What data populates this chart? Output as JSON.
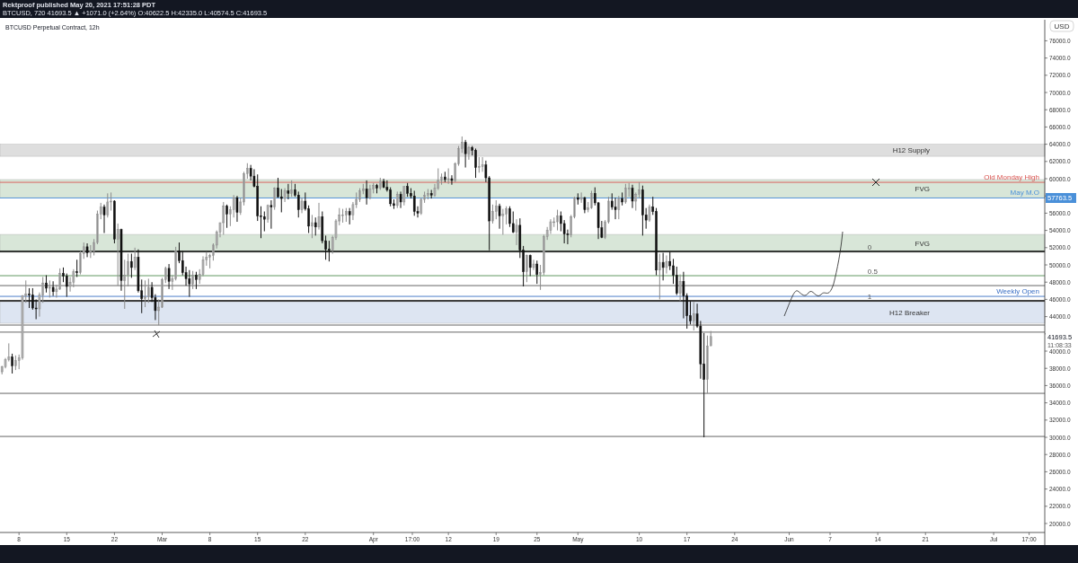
{
  "chart_data": {
    "type": "candlestick",
    "title": "BTCUSD Perpetual Contract, 12h",
    "subtitle": "BTCUSD, 720 41693.5 ▲ +1071.0 (+2.64%) O:40622.5 H:42335.0 L:40574.5 C:41693.5",
    "ylabel": "USD",
    "annotations": [
      "Rektproof published May 20, 2021 17:51:28 PDT",
      "11:08:33",
      {
        "text": "57763.5",
        "x": "2021-07-08T12:00",
        "y": 57763.5
      },
      {
        "text": "41693.5",
        "x": "2021-07-08T12:00",
        "y": 41693.5
      },
      {
        "text": "0",
        "x": "2021-06-12T12:00",
        "y": 51560
      },
      {
        "text": "0.5",
        "x": "2021-06-12T12:00",
        "y": 48750
      },
      {
        "text": "1",
        "x": "2021-06-12T12:00",
        "y": 45830
      }
    ],
    "xlim": [
      "2021-02-05T05:00",
      "2021-07-08T12:00"
    ],
    "xticks": [
      {
        "value": "2021-02-08",
        "label": "8"
      },
      {
        "value": "2021-02-15",
        "label": "15"
      },
      {
        "value": "2021-02-22",
        "label": "22"
      },
      {
        "value": "2021-03-01",
        "label": "Mar"
      },
      {
        "value": "2021-03-08",
        "label": "8"
      },
      {
        "value": "2021-03-15",
        "label": "15"
      },
      {
        "value": "2021-03-22",
        "label": "22"
      },
      {
        "value": "2021-04-01",
        "label": "Apr"
      },
      {
        "value": "2021-04-06T17:00",
        "label": "17:00"
      },
      {
        "value": "2021-04-12",
        "label": "12"
      },
      {
        "value": "2021-04-19",
        "label": "19"
      },
      {
        "value": "2021-04-25",
        "label": "25"
      },
      {
        "value": "2021-05-01",
        "label": "May"
      },
      {
        "value": "2021-05-10",
        "label": "10"
      },
      {
        "value": "2021-05-17",
        "label": "17"
      },
      {
        "value": "2021-05-24",
        "label": "24"
      },
      {
        "value": "2021-06-01",
        "label": "Jun"
      },
      {
        "value": "2021-06-07",
        "label": "7"
      },
      {
        "value": "2021-06-14",
        "label": "14"
      },
      {
        "value": "2021-06-21",
        "label": "21"
      },
      {
        "value": "2021-07-01",
        "label": "Jul"
      },
      {
        "value": "2021-07-06T05:00",
        "label": "17:00"
      }
    ],
    "ylim": [
      18960,
      78440
    ],
    "yticks": [
      {
        "value": 20000,
        "label": "20000.0"
      },
      {
        "value": 22000,
        "label": "22000.0"
      },
      {
        "value": 24000,
        "label": "24000.0"
      },
      {
        "value": 26000,
        "label": "26000.0"
      },
      {
        "value": 28000,
        "label": "28000.0"
      },
      {
        "value": 30000,
        "label": "30000.0"
      },
      {
        "value": 32000,
        "label": "32000.0"
      },
      {
        "value": 34000,
        "label": "34000.0"
      },
      {
        "value": 36000,
        "label": "36000.0"
      },
      {
        "value": 38000,
        "label": "38000.0"
      },
      {
        "value": 40000,
        "label": "40000.0"
      },
      {
        "value": 42000,
        "label": null
      },
      {
        "value": 44000,
        "label": "44000.0"
      },
      {
        "value": 46000,
        "label": "46000.0"
      },
      {
        "value": 48000,
        "label": "48000.0"
      },
      {
        "value": 50000,
        "label": "50000.0"
      },
      {
        "value": 52000,
        "label": "52000.0"
      },
      {
        "value": 54000,
        "label": "54000.0"
      },
      {
        "value": 56000,
        "label": "56000.0"
      },
      {
        "value": 58000,
        "label": null
      },
      {
        "value": 60000,
        "label": "60000.0"
      },
      {
        "value": 62000,
        "label": "62000.0"
      },
      {
        "value": 64000,
        "label": "64000.0"
      },
      {
        "value": 66000,
        "label": "66000.0"
      },
      {
        "value": 68000,
        "label": "68000.0"
      },
      {
        "value": 70000,
        "label": "70000.0"
      },
      {
        "value": 72000,
        "label": "72000.0"
      },
      {
        "value": 74000,
        "label": "74000.0"
      },
      {
        "value": 76000,
        "label": "76000.0"
      }
    ],
    "bands": [
      {
        "axis": "y",
        "from": 62600,
        "to": 64000,
        "label": "H12 Supply",
        "color": "#c4c4c4"
      },
      {
        "axis": "y",
        "from": 57800,
        "to": 59900,
        "label": "FVG",
        "color": "#b9d3b9"
      },
      {
        "axis": "y",
        "from": 51460,
        "to": 53540,
        "label": "FVG",
        "color": "#b9d3b9"
      },
      {
        "axis": "y",
        "from": 43230,
        "to": 45730,
        "label": "H12 Breaker",
        "color": "#c3d1e8"
      }
    ],
    "ref_lines": [
      {
        "axis": "y",
        "value": 59580,
        "label": "Old Monday High",
        "color": "#d9534f"
      },
      {
        "axis": "y",
        "value": 57763.5,
        "label": "May M.O",
        "color": "#4a90d9"
      },
      {
        "axis": "y",
        "value": 51560,
        "label": null,
        "color": "#000000"
      },
      {
        "axis": "y",
        "value": 48750,
        "label": null,
        "color": "#4f8a4f"
      },
      {
        "axis": "y",
        "value": 46350,
        "label": "Weekly Open",
        "color": "#3a6fc4"
      },
      {
        "axis": "y",
        "value": 45830,
        "label": null,
        "color": "#000000"
      },
      {
        "axis": "y",
        "value": 47600,
        "label": null,
        "color": "#555555"
      },
      {
        "axis": "y",
        "value": 43020,
        "label": null,
        "color": "#555555"
      },
      {
        "axis": "y",
        "value": 42200,
        "label": null,
        "color": "#555555"
      },
      {
        "axis": "y",
        "value": 35100,
        "label": null,
        "color": "#555555"
      },
      {
        "axis": "y",
        "value": 30100,
        "label": null,
        "color": "#555555"
      }
    ],
    "x": [
      "2021-02-05T12:00",
      "2021-02-06T00:00",
      "2021-02-06T12:00",
      "2021-02-07T00:00",
      "2021-02-07T12:00",
      "2021-02-08T00:00",
      "2021-02-08T12:00",
      "2021-02-09T00:00",
      "2021-02-09T12:00",
      "2021-02-10T00:00",
      "2021-02-10T12:00",
      "2021-02-11T00:00",
      "2021-02-11T12:00",
      "2021-02-12T00:00",
      "2021-02-12T12:00",
      "2021-02-13T00:00",
      "2021-02-13T12:00",
      "2021-02-14T00:00",
      "2021-02-14T12:00",
      "2021-02-15T00:00",
      "2021-02-15T12:00",
      "2021-02-16T00:00",
      "2021-02-16T12:00",
      "2021-02-17T00:00",
      "2021-02-17T12:00",
      "2021-02-18T00:00",
      "2021-02-18T12:00",
      "2021-02-19T00:00",
      "2021-02-19T12:00",
      "2021-02-20T00:00",
      "2021-02-20T12:00",
      "2021-02-21T00:00",
      "2021-02-21T12:00",
      "2021-02-22T00:00",
      "2021-02-22T12:00",
      "2021-02-23T00:00",
      "2021-02-23T12:00",
      "2021-02-24T00:00",
      "2021-02-24T12:00",
      "2021-02-25T00:00",
      "2021-02-25T12:00",
      "2021-02-26T00:00",
      "2021-02-26T12:00",
      "2021-02-27T00:00",
      "2021-02-27T12:00",
      "2021-02-28T00:00",
      "2021-02-28T12:00",
      "2021-03-01T00:00",
      "2021-03-01T12:00",
      "2021-03-02T00:00",
      "2021-03-02T12:00",
      "2021-03-03T00:00",
      "2021-03-03T12:00",
      "2021-03-04T00:00",
      "2021-03-04T12:00",
      "2021-03-05T00:00",
      "2021-03-05T12:00",
      "2021-03-06T00:00",
      "2021-03-06T12:00",
      "2021-03-07T00:00",
      "2021-03-07T12:00",
      "2021-03-08T00:00",
      "2021-03-08T12:00",
      "2021-03-09T00:00",
      "2021-03-09T12:00",
      "2021-03-10T00:00",
      "2021-03-10T12:00",
      "2021-03-11T00:00",
      "2021-03-11T12:00",
      "2021-03-12T00:00",
      "2021-03-12T12:00",
      "2021-03-13T00:00",
      "2021-03-13T12:00",
      "2021-03-14T00:00",
      "2021-03-14T12:00",
      "2021-03-15T00:00",
      "2021-03-15T12:00",
      "2021-03-16T00:00",
      "2021-03-16T12:00",
      "2021-03-17T00:00",
      "2021-03-17T12:00",
      "2021-03-18T00:00",
      "2021-03-18T12:00",
      "2021-03-19T00:00",
      "2021-03-19T12:00",
      "2021-03-20T00:00",
      "2021-03-20T12:00",
      "2021-03-21T00:00",
      "2021-03-21T12:00",
      "2021-03-22T00:00",
      "2021-03-22T12:00",
      "2021-03-23T00:00",
      "2021-03-23T12:00",
      "2021-03-24T00:00",
      "2021-03-24T12:00",
      "2021-03-25T00:00",
      "2021-03-25T12:00",
      "2021-03-26T00:00",
      "2021-03-26T12:00",
      "2021-03-27T00:00",
      "2021-03-27T12:00",
      "2021-03-28T00:00",
      "2021-03-28T12:00",
      "2021-03-29T00:00",
      "2021-03-29T12:00",
      "2021-03-30T00:00",
      "2021-03-30T12:00",
      "2021-03-31T00:00",
      "2021-03-31T12:00",
      "2021-04-01T00:00",
      "2021-04-01T12:00",
      "2021-04-02T00:00",
      "2021-04-02T12:00",
      "2021-04-03T00:00",
      "2021-04-03T12:00",
      "2021-04-04T00:00",
      "2021-04-04T12:00",
      "2021-04-05T00:00",
      "2021-04-05T12:00",
      "2021-04-06T00:00",
      "2021-04-06T12:00",
      "2021-04-07T00:00",
      "2021-04-07T12:00",
      "2021-04-08T00:00",
      "2021-04-08T12:00",
      "2021-04-09T00:00",
      "2021-04-09T12:00",
      "2021-04-10T00:00",
      "2021-04-10T12:00",
      "2021-04-11T00:00",
      "2021-04-11T12:00",
      "2021-04-12T00:00",
      "2021-04-12T12:00",
      "2021-04-13T00:00",
      "2021-04-13T12:00",
      "2021-04-14T00:00",
      "2021-04-14T12:00",
      "2021-04-15T00:00",
      "2021-04-15T12:00",
      "2021-04-16T00:00",
      "2021-04-16T12:00",
      "2021-04-17T00:00",
      "2021-04-17T12:00",
      "2021-04-18T00:00",
      "2021-04-18T12:00",
      "2021-04-19T00:00",
      "2021-04-19T12:00",
      "2021-04-20T00:00",
      "2021-04-20T12:00",
      "2021-04-21T00:00",
      "2021-04-21T12:00",
      "2021-04-22T00:00",
      "2021-04-22T12:00",
      "2021-04-23T00:00",
      "2021-04-23T12:00",
      "2021-04-24T00:00",
      "2021-04-24T12:00",
      "2021-04-25T00:00",
      "2021-04-25T12:00",
      "2021-04-26T00:00",
      "2021-04-26T12:00",
      "2021-04-27T00:00",
      "2021-04-27T12:00",
      "2021-04-28T00:00",
      "2021-04-28T12:00",
      "2021-04-29T00:00",
      "2021-04-29T12:00",
      "2021-04-30T00:00",
      "2021-04-30T12:00",
      "2021-05-01T00:00",
      "2021-05-01T12:00",
      "2021-05-02T00:00",
      "2021-05-02T12:00",
      "2021-05-03T00:00",
      "2021-05-03T12:00",
      "2021-05-04T00:00",
      "2021-05-04T12:00",
      "2021-05-05T00:00",
      "2021-05-05T12:00",
      "2021-05-06T00:00",
      "2021-05-06T12:00",
      "2021-05-07T00:00",
      "2021-05-07T12:00",
      "2021-05-08T00:00",
      "2021-05-08T12:00",
      "2021-05-09T00:00",
      "2021-05-09T12:00",
      "2021-05-10T00:00",
      "2021-05-10T12:00",
      "2021-05-11T00:00",
      "2021-05-11T12:00",
      "2021-05-12T00:00",
      "2021-05-12T12:00",
      "2021-05-13T00:00",
      "2021-05-13T12:00",
      "2021-05-14T00:00",
      "2021-05-14T12:00",
      "2021-05-15T00:00",
      "2021-05-15T12:00",
      "2021-05-16T00:00",
      "2021-05-16T12:00",
      "2021-05-17T00:00",
      "2021-05-17T12:00",
      "2021-05-18T00:00",
      "2021-05-18T12:00",
      "2021-05-19T00:00",
      "2021-05-19T12:00",
      "2021-05-20T00:00",
      "2021-05-20T12:00"
    ],
    "ohlc": [
      [
        37600,
        38300,
        37300,
        38200
      ],
      [
        38200,
        39200,
        38000,
        39000
      ],
      [
        39000,
        40900,
        38800,
        39300
      ],
      [
        39300,
        39700,
        37400,
        38300
      ],
      [
        38300,
        39500,
        37800,
        38900
      ],
      [
        38900,
        39600,
        37900,
        39200
      ],
      [
        39200,
        46500,
        39000,
        46400
      ],
      [
        46400,
        48200,
        45600,
        46600
      ],
      [
        46600,
        47300,
        45000,
        46500
      ],
      [
        46500,
        47300,
        44800,
        45000
      ],
      [
        45000,
        46000,
        43700,
        44900
      ],
      [
        44900,
        46800,
        44000,
        46500
      ],
      [
        46500,
        48600,
        45600,
        47900
      ],
      [
        47900,
        48800,
        46800,
        47300
      ],
      [
        47300,
        48200,
        46200,
        47400
      ],
      [
        47400,
        48100,
        46400,
        46900
      ],
      [
        46900,
        47700,
        46200,
        47200
      ],
      [
        47200,
        49600,
        47100,
        49000
      ],
      [
        49000,
        49700,
        48000,
        48700
      ],
      [
        48700,
        49000,
        46300,
        47500
      ],
      [
        47500,
        48600,
        46900,
        48000
      ],
      [
        48000,
        49500,
        47400,
        49200
      ],
      [
        49200,
        50600,
        48600,
        49100
      ],
      [
        49100,
        51600,
        48900,
        51300
      ],
      [
        51300,
        52600,
        50700,
        52100
      ],
      [
        52100,
        52500,
        50900,
        51400
      ],
      [
        51400,
        52300,
        50800,
        51600
      ],
      [
        51600,
        53000,
        51100,
        52600
      ],
      [
        52600,
        56300,
        52400,
        55900
      ],
      [
        55900,
        57200,
        55300,
        56700
      ],
      [
        56700,
        57000,
        53700,
        55800
      ],
      [
        55800,
        58300,
        55500,
        57300
      ],
      [
        57300,
        58400,
        56300,
        57400
      ],
      [
        57400,
        57500,
        52500,
        53000
      ],
      [
        53000,
        54800,
        47600,
        54100
      ],
      [
        54100,
        54200,
        47000,
        48200
      ],
      [
        48200,
        50600,
        44900,
        48800
      ],
      [
        48800,
        51300,
        47500,
        50400
      ],
      [
        50400,
        51300,
        48500,
        49700
      ],
      [
        49700,
        52000,
        49400,
        50900
      ],
      [
        50900,
        51800,
        46800,
        47000
      ],
      [
        47000,
        48300,
        44400,
        46100
      ],
      [
        46100,
        48200,
        45100,
        46300
      ],
      [
        46300,
        48400,
        45600,
        47400
      ],
      [
        47400,
        48000,
        45700,
        46200
      ],
      [
        46200,
        46600,
        43600,
        44700
      ],
      [
        44700,
        46000,
        43000,
        45100
      ],
      [
        45100,
        48500,
        45000,
        48300
      ],
      [
        48300,
        49800,
        47900,
        49600
      ],
      [
        49600,
        50100,
        47200,
        48100
      ],
      [
        48100,
        48800,
        47100,
        48400
      ],
      [
        48400,
        52100,
        48200,
        51600
      ],
      [
        51600,
        52600,
        50200,
        50500
      ],
      [
        50500,
        51600,
        48800,
        49100
      ],
      [
        49100,
        49800,
        47600,
        48400
      ],
      [
        48400,
        49400,
        46300,
        47800
      ],
      [
        47800,
        49300,
        47200,
        48800
      ],
      [
        48800,
        49200,
        47200,
        48300
      ],
      [
        48300,
        49500,
        47800,
        48900
      ],
      [
        48900,
        51000,
        48700,
        50600
      ],
      [
        50600,
        51500,
        49900,
        50900
      ],
      [
        50900,
        51300,
        49600,
        51100
      ],
      [
        51100,
        52500,
        50500,
        52300
      ],
      [
        52300,
        54000,
        51900,
        53800
      ],
      [
        53800,
        54900,
        53200,
        54900
      ],
      [
        54900,
        57300,
        53500,
        56800
      ],
      [
        56800,
        57000,
        54300,
        55900
      ],
      [
        55900,
        56800,
        54500,
        56400
      ],
      [
        56400,
        58100,
        55500,
        57800
      ],
      [
        57800,
        58000,
        55000,
        56100
      ],
      [
        56100,
        57800,
        55800,
        57300
      ],
      [
        57300,
        60800,
        56900,
        60600
      ],
      [
        60600,
        61800,
        60000,
        61200
      ],
      [
        61200,
        61600,
        59800,
        60300
      ],
      [
        60300,
        61100,
        59000,
        59100
      ],
      [
        59100,
        60500,
        55100,
        55700
      ],
      [
        55700,
        56800,
        53100,
        55600
      ],
      [
        55600,
        56200,
        53900,
        55300
      ],
      [
        55300,
        57000,
        54900,
        56900
      ],
      [
        56900,
        57500,
        54200,
        56700
      ],
      [
        56700,
        59000,
        56400,
        58900
      ],
      [
        58900,
        60100,
        57800,
        57900
      ],
      [
        57900,
        58800,
        56100,
        57700
      ],
      [
        57700,
        58900,
        57300,
        58600
      ],
      [
        58600,
        59400,
        57600,
        58300
      ],
      [
        58300,
        59800,
        57900,
        58700
      ],
      [
        58700,
        59400,
        57900,
        58100
      ],
      [
        58100,
        58500,
        55500,
        56400
      ],
      [
        56400,
        57800,
        56000,
        57400
      ],
      [
        57400,
        58400,
        56300,
        56500
      ],
      [
        56500,
        56900,
        53700,
        54500
      ],
      [
        54500,
        55800,
        53100,
        54900
      ],
      [
        54900,
        55500,
        53400,
        54400
      ],
      [
        54400,
        57200,
        54100,
        55600
      ],
      [
        55600,
        56200,
        52500,
        52800
      ],
      [
        52800,
        53400,
        50600,
        51800
      ],
      [
        51800,
        52800,
        50400,
        51700
      ],
      [
        51700,
        53400,
        51300,
        53200
      ],
      [
        53200,
        55300,
        52900,
        55100
      ],
      [
        55100,
        56600,
        54600,
        55800
      ],
      [
        55800,
        56500,
        54900,
        55800
      ],
      [
        55800,
        56600,
        55000,
        56200
      ],
      [
        56200,
        56600,
        54700,
        55800
      ],
      [
        55800,
        57300,
        55200,
        57000
      ],
      [
        57000,
        58400,
        56600,
        57600
      ],
      [
        57600,
        58900,
        57300,
        58600
      ],
      [
        58600,
        59400,
        58200,
        58800
      ],
      [
        58800,
        59800,
        57000,
        57800
      ],
      [
        57800,
        59300,
        57600,
        58800
      ],
      [
        58800,
        59500,
        58300,
        59200
      ],
      [
        59200,
        59400,
        58300,
        58900
      ],
      [
        58900,
        60100,
        58700,
        59700
      ],
      [
        59700,
        60000,
        58900,
        59000
      ],
      [
        59000,
        59800,
        58500,
        58700
      ],
      [
        58700,
        59000,
        56800,
        57100
      ],
      [
        57100,
        57600,
        56500,
        56900
      ],
      [
        56900,
        58500,
        56600,
        58200
      ],
      [
        58200,
        58500,
        56600,
        57300
      ],
      [
        57300,
        59100,
        56900,
        59100
      ],
      [
        59100,
        59500,
        57900,
        58300
      ],
      [
        58300,
        58900,
        57700,
        58000
      ],
      [
        58000,
        58600,
        55700,
        56200
      ],
      [
        56200,
        56800,
        55500,
        56000
      ],
      [
        56000,
        57800,
        55800,
        57600
      ],
      [
        57600,
        58500,
        57200,
        58100
      ],
      [
        58100,
        58800,
        57600,
        58300
      ],
      [
        58300,
        58700,
        57700,
        58100
      ],
      [
        58100,
        59400,
        57900,
        58900
      ],
      [
        58900,
        61200,
        58700,
        59800
      ],
      [
        59800,
        60600,
        59300,
        60200
      ],
      [
        60200,
        60800,
        59600,
        59900
      ],
      [
        59900,
        61200,
        59400,
        60000
      ],
      [
        60000,
        60400,
        59300,
        59800
      ],
      [
        59800,
        61900,
        59600,
        61700
      ],
      [
        61700,
        63800,
        61500,
        63500
      ],
      [
        63500,
        64900,
        63000,
        64200
      ],
      [
        64200,
        64500,
        61300,
        62900
      ],
      [
        62900,
        63800,
        62200,
        63600
      ],
      [
        63600,
        63800,
        62700,
        63300
      ],
      [
        63300,
        63500,
        60100,
        61300
      ],
      [
        61300,
        62500,
        60700,
        61400
      ],
      [
        61400,
        62500,
        60800,
        61600
      ],
      [
        61600,
        62100,
        59600,
        60100
      ],
      [
        60100,
        60300,
        51700,
        55100
      ],
      [
        55100,
        57000,
        54800,
        56200
      ],
      [
        56200,
        57500,
        55300,
        56800
      ],
      [
        56800,
        57100,
        54200,
        55700
      ],
      [
        55700,
        56500,
        53500,
        55900
      ],
      [
        55900,
        56800,
        54700,
        56500
      ],
      [
        56500,
        56800,
        54400,
        54800
      ],
      [
        54800,
        56200,
        53700,
        53800
      ],
      [
        53800,
        55300,
        52300,
        54600
      ],
      [
        54600,
        55400,
        50800,
        51700
      ],
      [
        51700,
        52200,
        47500,
        49200
      ],
      [
        49200,
        51200,
        48000,
        51100
      ],
      [
        51100,
        51200,
        48700,
        49700
      ],
      [
        49700,
        50600,
        49400,
        50100
      ],
      [
        50100,
        50500,
        47800,
        48900
      ],
      [
        48900,
        50000,
        47100,
        49100
      ],
      [
        49100,
        53500,
        48800,
        53300
      ],
      [
        53300,
        54400,
        52900,
        54000
      ],
      [
        54000,
        55300,
        53600,
        55000
      ],
      [
        55000,
        55500,
        54400,
        55000
      ],
      [
        55000,
        56400,
        54000,
        55700
      ],
      [
        55700,
        56200,
        53900,
        54800
      ],
      [
        54800,
        55200,
        52500,
        53600
      ],
      [
        53600,
        54100,
        52400,
        53500
      ],
      [
        53500,
        55800,
        53200,
        55600
      ],
      [
        55600,
        57900,
        55400,
        57800
      ],
      [
        57800,
        58300,
        57000,
        57600
      ],
      [
        57600,
        58400,
        57200,
        57800
      ],
      [
        57800,
        57900,
        56000,
        56400
      ],
      [
        56400,
        57300,
        56100,
        56600
      ],
      [
        56600,
        58600,
        56500,
        58300
      ],
      [
        58300,
        59000,
        56900,
        57200
      ],
      [
        57200,
        57300,
        53000,
        54300
      ],
      [
        54300,
        55100,
        53100,
        53200
      ],
      [
        53200,
        55200,
        53000,
        55000
      ],
      [
        55000,
        57900,
        54800,
        57400
      ],
      [
        57400,
        58300,
        56400,
        56700
      ],
      [
        56700,
        57800,
        55300,
        56400
      ],
      [
        56400,
        58000,
        55300,
        57700
      ],
      [
        57700,
        58400,
        56900,
        57300
      ],
      [
        57300,
        59400,
        57100,
        58900
      ],
      [
        58900,
        59500,
        57900,
        58900
      ],
      [
        58900,
        59300,
        56600,
        57400
      ],
      [
        57400,
        58400,
        56300,
        58200
      ],
      [
        58200,
        59600,
        57700,
        58700
      ],
      [
        58700,
        59200,
        53400,
        55800
      ],
      [
        55800,
        56600,
        54200,
        55200
      ],
      [
        55200,
        57000,
        55000,
        56700
      ],
      [
        56700,
        57900,
        55800,
        56200
      ],
      [
        56200,
        56600,
        48800,
        49400
      ],
      [
        49400,
        51300,
        46000,
        50300
      ],
      [
        50300,
        51400,
        48200,
        49700
      ],
      [
        49700,
        51100,
        49000,
        50400
      ],
      [
        50400,
        51500,
        49400,
        49900
      ],
      [
        49900,
        50700,
        47800,
        48800
      ],
      [
        48800,
        49800,
        46500,
        46700
      ],
      [
        46700,
        48900,
        45800,
        48100
      ],
      [
        48100,
        49200,
        43800,
        46400
      ],
      [
        46400,
        46700,
        42600,
        44100
      ],
      [
        44100,
        45800,
        43100,
        43500
      ],
      [
        43500,
        45700,
        42400,
        44300
      ],
      [
        44300,
        45500,
        42700,
        42900
      ],
      [
        42900,
        43500,
        36800,
        38500
      ],
      [
        38500,
        42100,
        30000,
        36700
      ],
      [
        36700,
        41800,
        35100,
        40600
      ],
      [
        40622.5,
        42335,
        40574.5,
        41693.5
      ]
    ]
  }
}
